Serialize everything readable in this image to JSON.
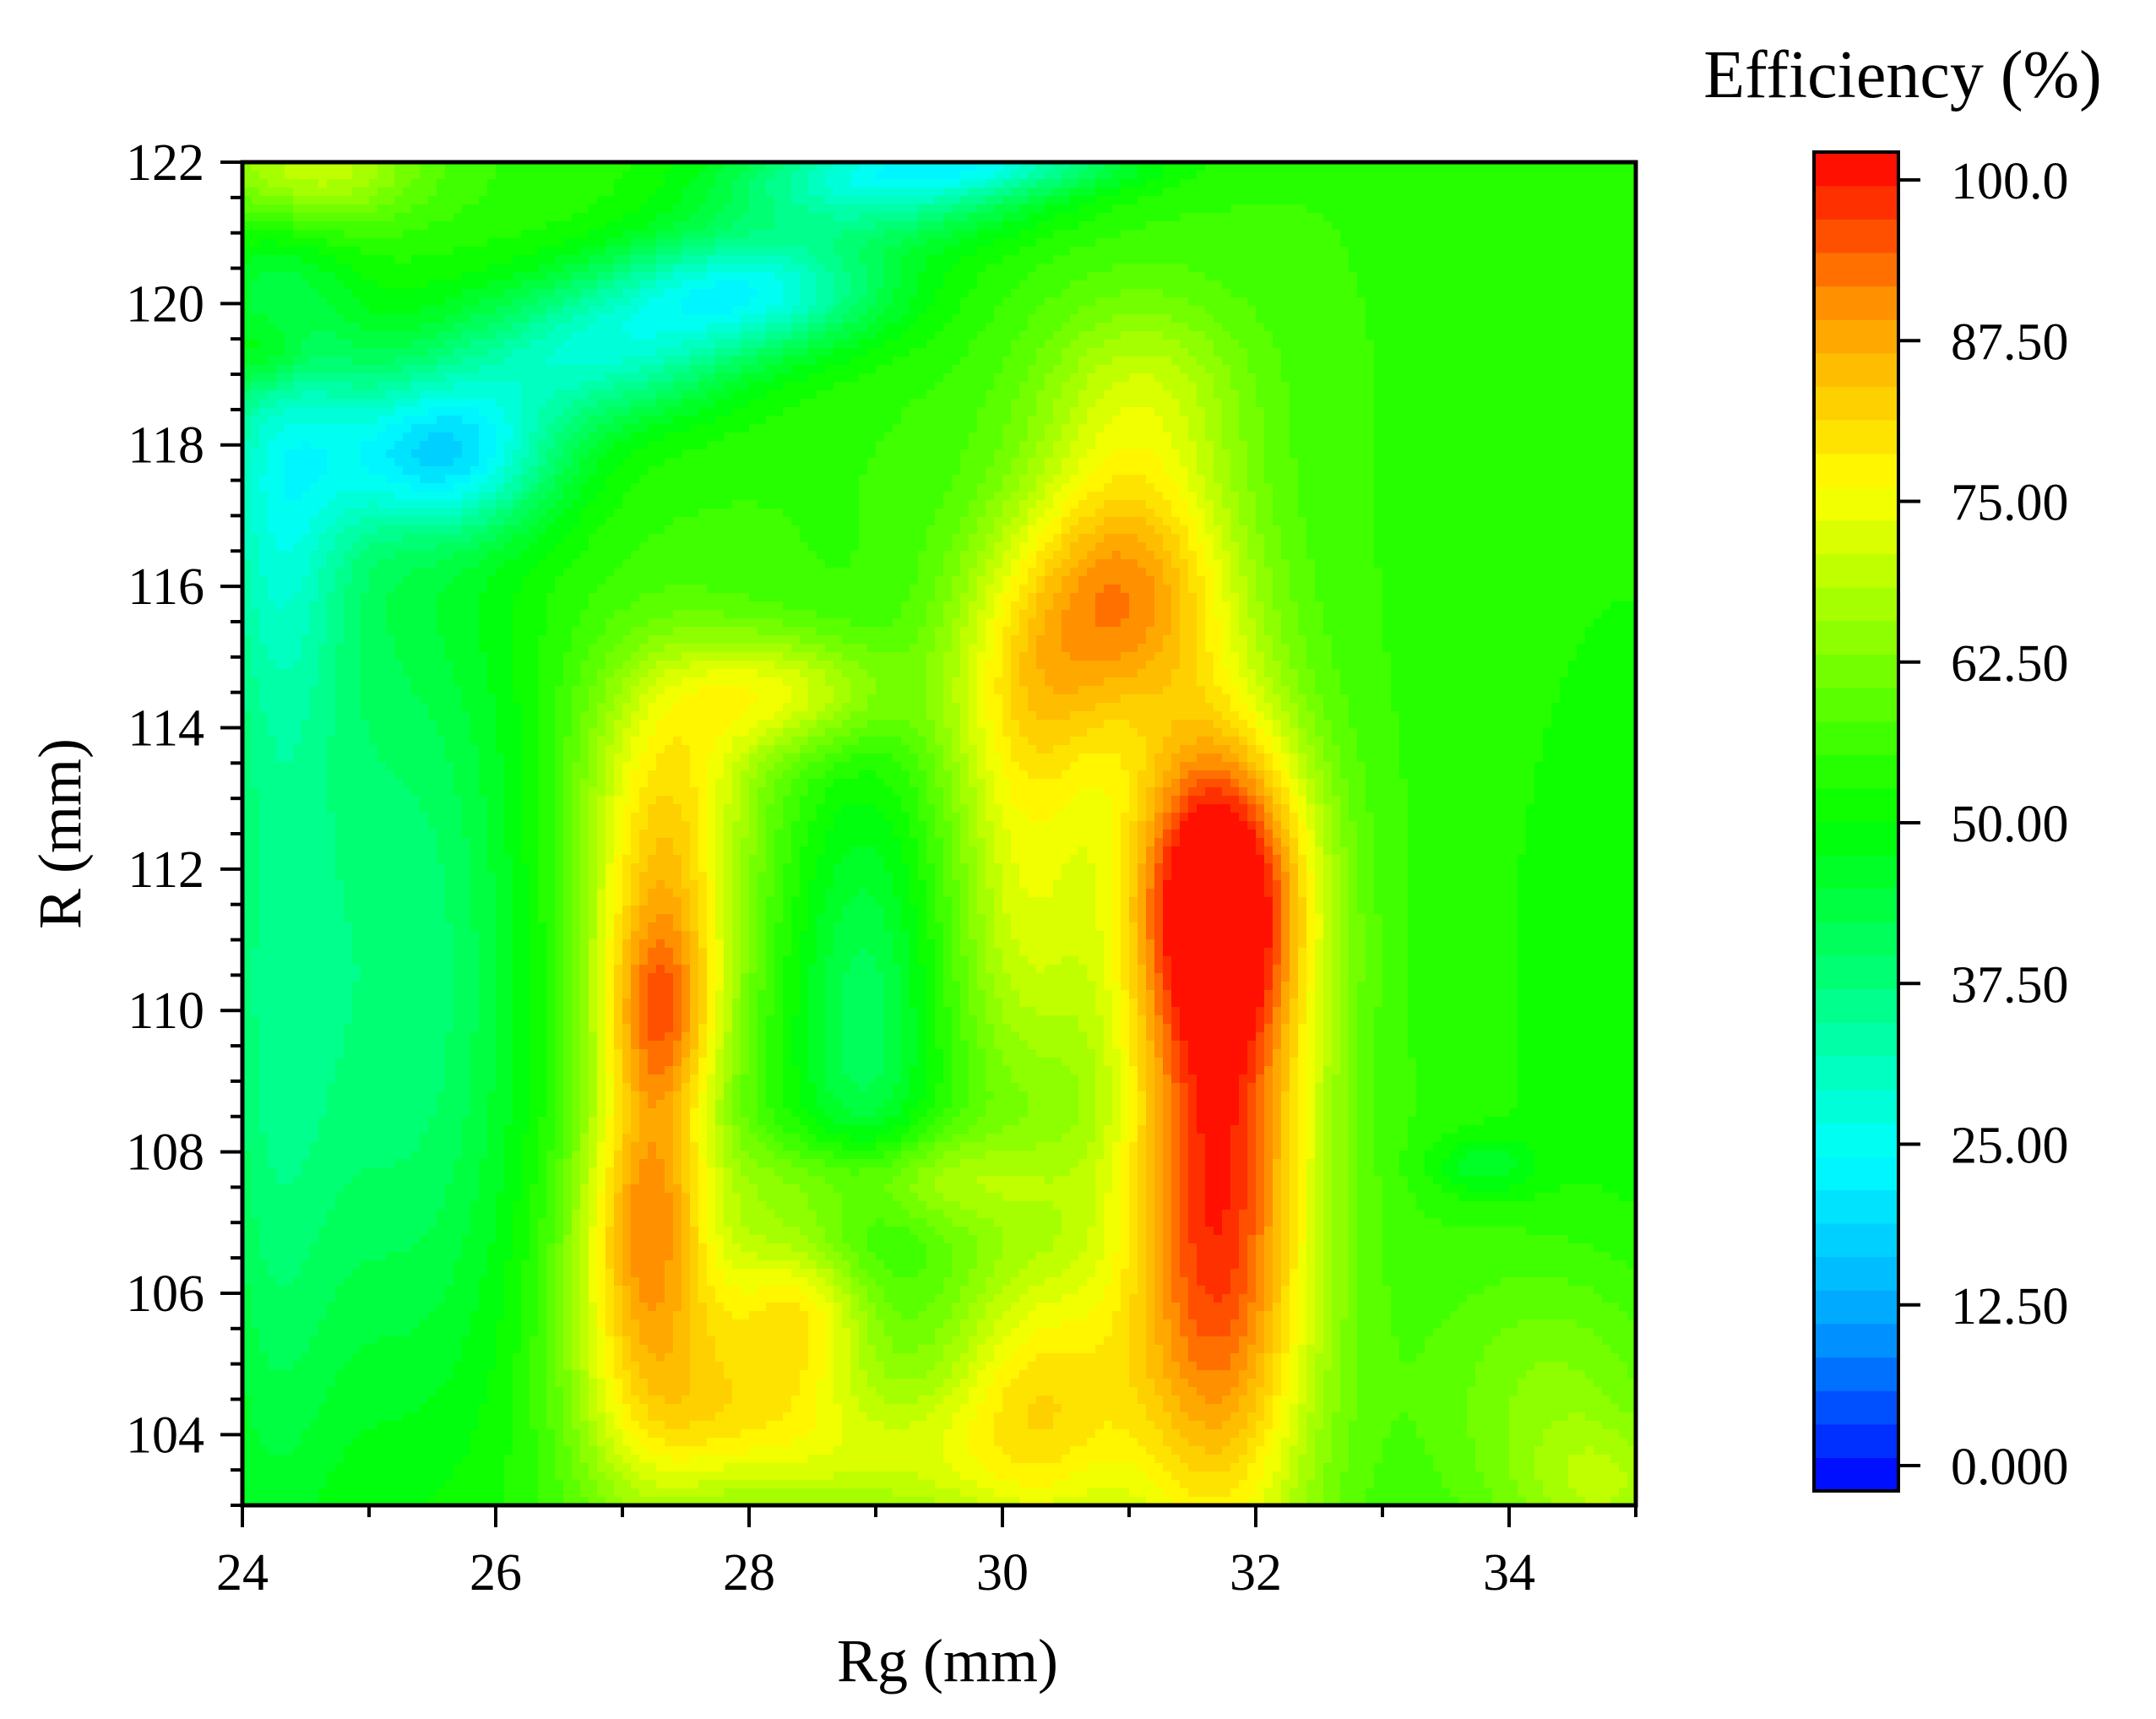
{
  "chart_data": {
    "type": "heatmap",
    "subtype": "filled-contour",
    "xlabel": "Rg (mm)",
    "ylabel": "R (mm)",
    "xlim": [
      24,
      35
    ],
    "ylim": [
      103,
      122
    ],
    "x_ticks": [
      24,
      26,
      28,
      30,
      32,
      34
    ],
    "y_ticks": [
      104,
      106,
      108,
      110,
      112,
      114,
      116,
      118,
      120,
      122
    ],
    "colorbar": {
      "title": "Efficiency (%)",
      "range": [
        0,
        100
      ],
      "levels": 40,
      "tick_values": [
        0,
        12.5,
        25,
        37.5,
        50,
        62.5,
        75,
        87.5,
        100
      ],
      "tick_labels": [
        "0.000",
        "12.50",
        "25.00",
        "37.50",
        "50.00",
        "62.50",
        "75.00",
        "87.50",
        "100.0"
      ],
      "colors": [
        "#0000ff",
        "#00a0ff",
        "#00ffff",
        "#00ff80",
        "#00ff00",
        "#80ff00",
        "#ffff00",
        "#ffa000",
        "#ff0000"
      ]
    },
    "z_grid_description": "efficiency (%) sampled on a regular grid over Rg and R",
    "background_value": 55,
    "features": [
      {
        "x": 31.7,
        "y": 107.2,
        "sx": 0.55,
        "sy": 3.6,
        "amp": 42
      },
      {
        "x": 31.7,
        "y": 111.8,
        "sx": 0.5,
        "sy": 1.6,
        "amp": 38
      },
      {
        "x": 31.0,
        "y": 116.0,
        "sx": 0.6,
        "sy": 1.4,
        "amp": 30
      },
      {
        "x": 31.1,
        "y": 118.8,
        "sx": 0.6,
        "sy": 1.0,
        "amp": 12
      },
      {
        "x": 30.3,
        "y": 104.5,
        "sx": 0.55,
        "sy": 1.6,
        "amp": 22
      },
      {
        "x": 30.2,
        "y": 111.2,
        "sx": 0.4,
        "sy": 1.8,
        "amp": 14
      },
      {
        "x": 30.2,
        "y": 114.5,
        "sx": 0.5,
        "sy": 1.5,
        "amp": 18
      },
      {
        "x": 27.3,
        "y": 109.9,
        "sx": 0.35,
        "sy": 1.1,
        "amp": 28
      },
      {
        "x": 27.3,
        "y": 111.8,
        "sx": 0.45,
        "sy": 1.3,
        "amp": 20
      },
      {
        "x": 27.2,
        "y": 107.5,
        "sx": 0.35,
        "sy": 1.3,
        "amp": 18
      },
      {
        "x": 27.2,
        "y": 105.5,
        "sx": 0.45,
        "sy": 1.8,
        "amp": 24
      },
      {
        "x": 28.4,
        "y": 105.7,
        "sx": 0.45,
        "sy": 0.9,
        "amp": 22
      },
      {
        "x": 28.3,
        "y": 114.5,
        "sx": 0.6,
        "sy": 0.6,
        "amp": 16
      },
      {
        "x": 27.4,
        "y": 113.7,
        "sx": 0.5,
        "sy": 1.2,
        "amp": 14
      },
      {
        "x": 28.9,
        "y": 103.7,
        "sx": 0.8,
        "sy": 0.8,
        "amp": 14
      },
      {
        "x": 27.9,
        "y": 104.3,
        "sx": 0.5,
        "sy": 0.8,
        "amp": 10
      },
      {
        "x": 29.2,
        "y": 107.6,
        "sx": 0.9,
        "sy": 0.5,
        "amp": 12
      },
      {
        "x": 28.9,
        "y": 109.8,
        "sx": 0.4,
        "sy": 2.4,
        "amp": -14
      },
      {
        "x": 34.4,
        "y": 104.6,
        "sx": 0.7,
        "sy": 1.4,
        "amp": 10
      },
      {
        "x": 34.8,
        "y": 103.2,
        "sx": 0.5,
        "sy": 0.7,
        "amp": 10
      },
      {
        "x": 25.3,
        "y": 110.5,
        "sx": 0.7,
        "sy": 4.8,
        "amp": -17
      },
      {
        "x": 24.2,
        "y": 110.0,
        "sx": 0.4,
        "sy": 6.0,
        "amp": -14
      },
      {
        "x": 24.3,
        "y": 117.5,
        "sx": 0.45,
        "sy": 2.2,
        "amp": -18
      },
      {
        "x": 25.6,
        "y": 117.9,
        "sx": 0.65,
        "sy": 0.8,
        "amp": -30
      },
      {
        "x": 26.8,
        "y": 119.3,
        "sx": 0.8,
        "sy": 0.7,
        "amp": -22
      },
      {
        "x": 28.0,
        "y": 120.2,
        "sx": 0.8,
        "sy": 0.6,
        "amp": -27
      },
      {
        "x": 29.0,
        "y": 121.7,
        "sx": 0.9,
        "sy": 0.55,
        "amp": -24
      },
      {
        "x": 30.0,
        "y": 122.0,
        "sx": 0.8,
        "sy": 0.3,
        "amp": -16
      },
      {
        "x": 24.5,
        "y": 121.9,
        "sx": 0.6,
        "sy": 0.6,
        "amp": 18
      },
      {
        "x": 24.2,
        "y": 119.3,
        "sx": 0.25,
        "sy": 0.4,
        "amp": 10
      },
      {
        "x": 35.0,
        "y": 110.0,
        "sx": 1.0,
        "sy": 6.0,
        "amp": -4
      },
      {
        "x": 33.8,
        "y": 107.8,
        "sx": 0.3,
        "sy": 0.3,
        "amp": -8
      }
    ]
  }
}
